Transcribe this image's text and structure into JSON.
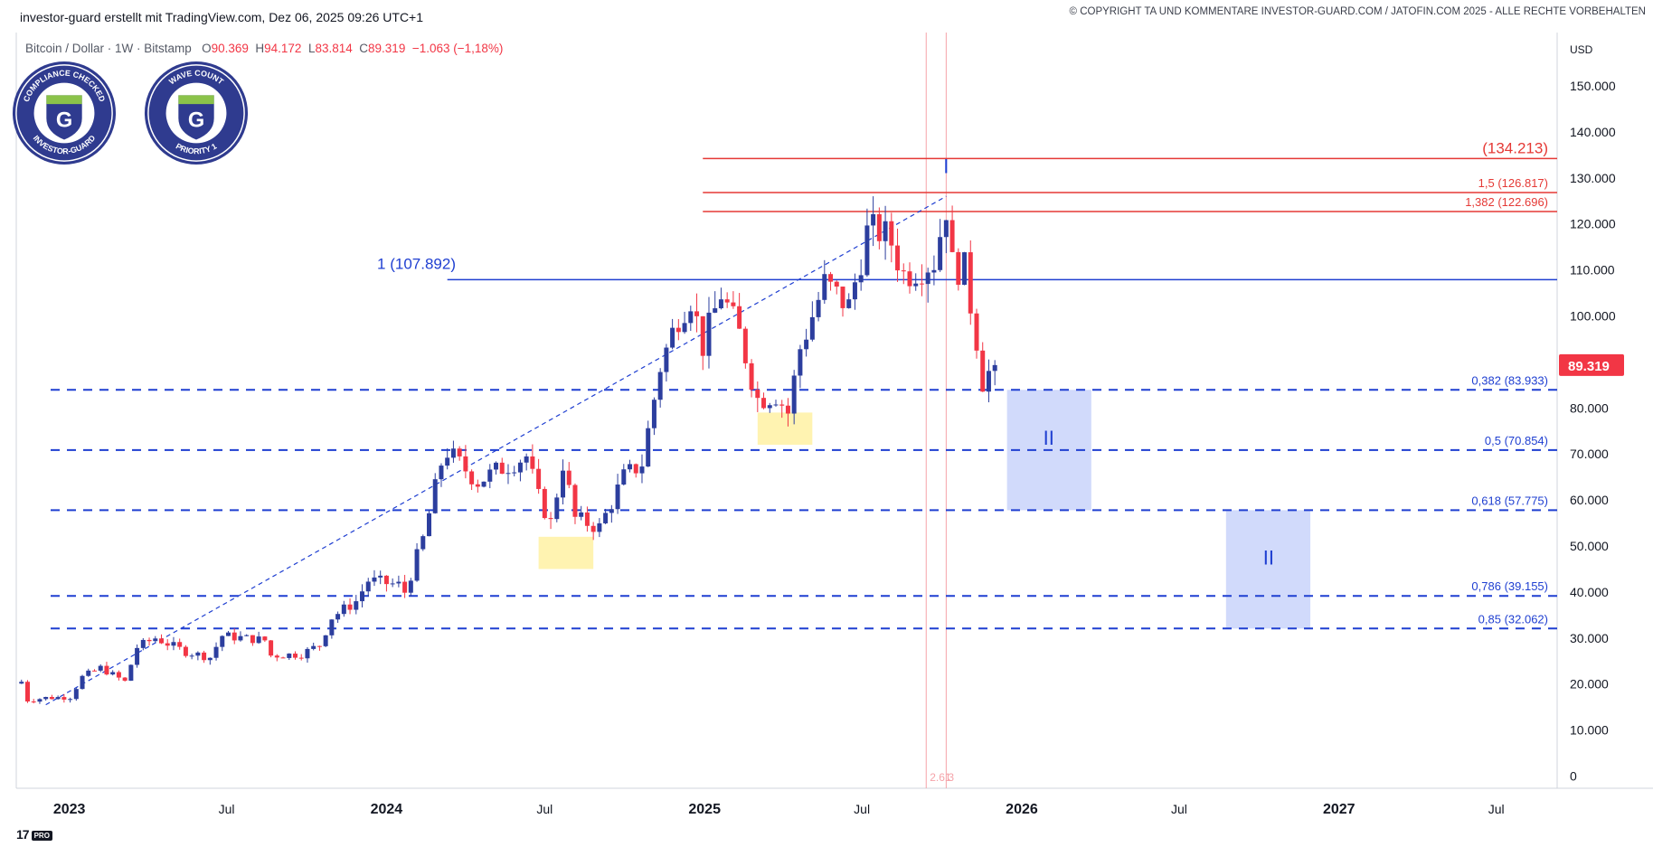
{
  "header": {
    "credit": "investor-guard erstellt mit TradingView.com, Dez 06, 2025 09:26 UTC+1",
    "copyright": "© COPYRIGHT TA UND KOMMENTARE INVESTOR-GUARD.COM / JATOFIN.COM 2025 - ALLE RECHTE VORBEHALTEN"
  },
  "symbol": {
    "name": "Bitcoin / Dollar · 1W · Bitstamp",
    "open_label": "O",
    "open": "90.369",
    "high_label": "H",
    "high": "94.172",
    "low_label": "L",
    "low": "83.814",
    "close_label": "C",
    "close": "89.319",
    "change": "−1.063 (−1,18%)"
  },
  "badges": [
    {
      "top": "COMPLIANCE CHECKED",
      "bottom": "INVESTOR-GUARD",
      "letter": "G"
    },
    {
      "top": "WAVE COUNT",
      "bottom": "PRIORITY 1",
      "letter": "G"
    }
  ],
  "colors": {
    "up": "#2c3e9e",
    "down": "#f23645",
    "fib_blue": "#1f3fd1",
    "fib_red": "#e53935",
    "target_box": "#c9d3fa",
    "highlight": "#fff2a8",
    "price_tag": "#f23645"
  },
  "chart_data": {
    "type": "candlestick",
    "currency": "USD",
    "timeframe": "1W",
    "ylim": [
      0,
      160000
    ],
    "y_ticks": [
      "150.000",
      "140.000",
      "130.000",
      "120.000",
      "110.000",
      "100.000",
      "90.000",
      "80.000",
      "70.000",
      "60.000",
      "50.000",
      "40.000",
      "30.000",
      "20.000",
      "10.000",
      "0"
    ],
    "x_ticks": [
      {
        "label": "2023",
        "date": "2023-01-01",
        "bold": true
      },
      {
        "label": "Jul",
        "date": "2023-07-01",
        "bold": false
      },
      {
        "label": "2024",
        "date": "2024-01-01",
        "bold": true
      },
      {
        "label": "Jul",
        "date": "2024-07-01",
        "bold": false
      },
      {
        "label": "2025",
        "date": "2025-01-01",
        "bold": true
      },
      {
        "label": "Jul",
        "date": "2025-07-01",
        "bold": false
      },
      {
        "label": "2026",
        "date": "2026-01-01",
        "bold": true
      },
      {
        "label": "Jul",
        "date": "2026-07-01",
        "bold": false
      },
      {
        "label": "2027",
        "date": "2027-01-01",
        "bold": true
      },
      {
        "label": "Jul",
        "date": "2027-07-01",
        "bold": false
      }
    ],
    "x_start": "2022-11-01",
    "x_end": "2027-09-09",
    "last_price": {
      "label": "89.319",
      "value": 89319
    },
    "weekly_closes": [
      {
        "date": "2022-11-07",
        "close": 20500
      },
      {
        "date": "2022-11-14",
        "close": 16500
      },
      {
        "date": "2022-12-05",
        "close": 17000
      },
      {
        "date": "2023-01-02",
        "close": 17200
      },
      {
        "date": "2023-01-16",
        "close": 21500
      },
      {
        "date": "2023-02-06",
        "close": 23500
      },
      {
        "date": "2023-03-06",
        "close": 20500
      },
      {
        "date": "2023-03-20",
        "close": 28000
      },
      {
        "date": "2023-04-10",
        "close": 30000
      },
      {
        "date": "2023-05-15",
        "close": 27000
      },
      {
        "date": "2023-06-12",
        "close": 25800
      },
      {
        "date": "2023-06-26",
        "close": 30500
      },
      {
        "date": "2023-08-14",
        "close": 29500
      },
      {
        "date": "2023-08-21",
        "close": 26200
      },
      {
        "date": "2023-09-25",
        "close": 26500
      },
      {
        "date": "2023-10-16",
        "close": 28500
      },
      {
        "date": "2023-10-30",
        "close": 34500
      },
      {
        "date": "2023-11-27",
        "close": 38000
      },
      {
        "date": "2023-12-11",
        "close": 42500
      },
      {
        "date": "2024-01-15",
        "close": 41500
      },
      {
        "date": "2024-01-22",
        "close": 40000
      },
      {
        "date": "2024-02-12",
        "close": 51500
      },
      {
        "date": "2024-03-04",
        "close": 68000
      },
      {
        "date": "2024-03-11",
        "close": 70500
      },
      {
        "date": "2024-04-15",
        "close": 64000
      },
      {
        "date": "2024-05-13",
        "close": 67000
      },
      {
        "date": "2024-06-10",
        "close": 69500
      },
      {
        "date": "2024-06-24",
        "close": 60500
      },
      {
        "date": "2024-07-08",
        "close": 55000
      },
      {
        "date": "2024-07-22",
        "close": 68000
      },
      {
        "date": "2024-08-05",
        "close": 56000
      },
      {
        "date": "2024-09-02",
        "close": 54000
      },
      {
        "date": "2024-09-30",
        "close": 65000
      },
      {
        "date": "2024-10-21",
        "close": 68000
      },
      {
        "date": "2024-11-11",
        "close": 89000
      },
      {
        "date": "2024-12-02",
        "close": 100000
      },
      {
        "date": "2024-12-16",
        "close": 104000
      },
      {
        "date": "2024-12-30",
        "close": 93500
      },
      {
        "date": "2025-01-20",
        "close": 105000
      },
      {
        "date": "2025-02-10",
        "close": 96000
      },
      {
        "date": "2025-03-03",
        "close": 82000
      },
      {
        "date": "2025-03-24",
        "close": 83000
      },
      {
        "date": "2025-04-07",
        "close": 79000
      },
      {
        "date": "2025-04-21",
        "close": 93000
      },
      {
        "date": "2025-05-19",
        "close": 107000
      },
      {
        "date": "2025-06-16",
        "close": 102000
      },
      {
        "date": "2025-07-07",
        "close": 118000
      },
      {
        "date": "2025-07-21",
        "close": 118500
      },
      {
        "date": "2025-08-04",
        "close": 116000
      },
      {
        "date": "2025-08-18",
        "close": 109000
      },
      {
        "date": "2025-09-22",
        "close": 112000
      },
      {
        "date": "2025-10-06",
        "close": 124000
      },
      {
        "date": "2025-10-13",
        "close": 111000
      },
      {
        "date": "2025-10-27",
        "close": 110000
      },
      {
        "date": "2025-11-10",
        "close": 95000
      },
      {
        "date": "2025-11-17",
        "close": 86000
      },
      {
        "date": "2025-12-01",
        "close": 89319
      }
    ],
    "fib_lines": [
      {
        "label": "(134.213)",
        "value": 134213,
        "color": "red",
        "style": "solid",
        "large": true
      },
      {
        "label": "1,5 (126.817)",
        "value": 126817,
        "color": "red",
        "style": "solid"
      },
      {
        "label": "1,382 (122.696)",
        "value": 122696,
        "color": "red",
        "style": "solid"
      },
      {
        "label": "1 (107.892)",
        "value": 107892,
        "color": "blue",
        "style": "solid"
      },
      {
        "label": "0,382 (83.933)",
        "value": 83933,
        "color": "blue",
        "style": "dashed"
      },
      {
        "label": "0,5 (70.854)",
        "value": 70854,
        "color": "blue",
        "style": "dashed"
      },
      {
        "label": "0,618 (57.775)",
        "value": 57775,
        "color": "blue",
        "style": "dashed"
      },
      {
        "label": "0,786 (39.155)",
        "value": 39155,
        "color": "blue",
        "style": "dashed"
      },
      {
        "label": "0,85 (32.062)",
        "value": 32062,
        "color": "blue",
        "style": "dashed"
      }
    ],
    "trendline": {
      "from": {
        "date": "2022-12-05",
        "value": 15500
      },
      "to": {
        "date": "2025-10-06",
        "value": 126000
      },
      "style": "dashed"
    },
    "wave_labels": [
      {
        "label": "I",
        "date": "2025-10-06",
        "value": 131000
      },
      {
        "label": "II",
        "date": "2026-02-01",
        "value": 72000
      },
      {
        "label": "II",
        "date": "2026-10-12",
        "value": 46000
      }
    ],
    "target_zones": [
      {
        "label": "II",
        "date_from": "2025-12-15",
        "date_to": "2026-03-22",
        "value_from": 57775,
        "value_to": 83933
      },
      {
        "label": "II",
        "date_from": "2026-08-24",
        "date_to": "2026-11-29",
        "value_from": 32062,
        "value_to": 57775
      }
    ],
    "highlights": [
      {
        "date_from": "2024-06-24",
        "date_to": "2024-08-26",
        "value_from": 45000,
        "value_to": 52000
      },
      {
        "date_from": "2025-03-03",
        "date_to": "2025-05-05",
        "value_from": 72000,
        "value_to": 79000
      }
    ],
    "vertical_markers": [
      {
        "date": "2025-09-13",
        "label": "2.61"
      },
      {
        "date": "2025-10-06",
        "label": "3"
      }
    ]
  }
}
